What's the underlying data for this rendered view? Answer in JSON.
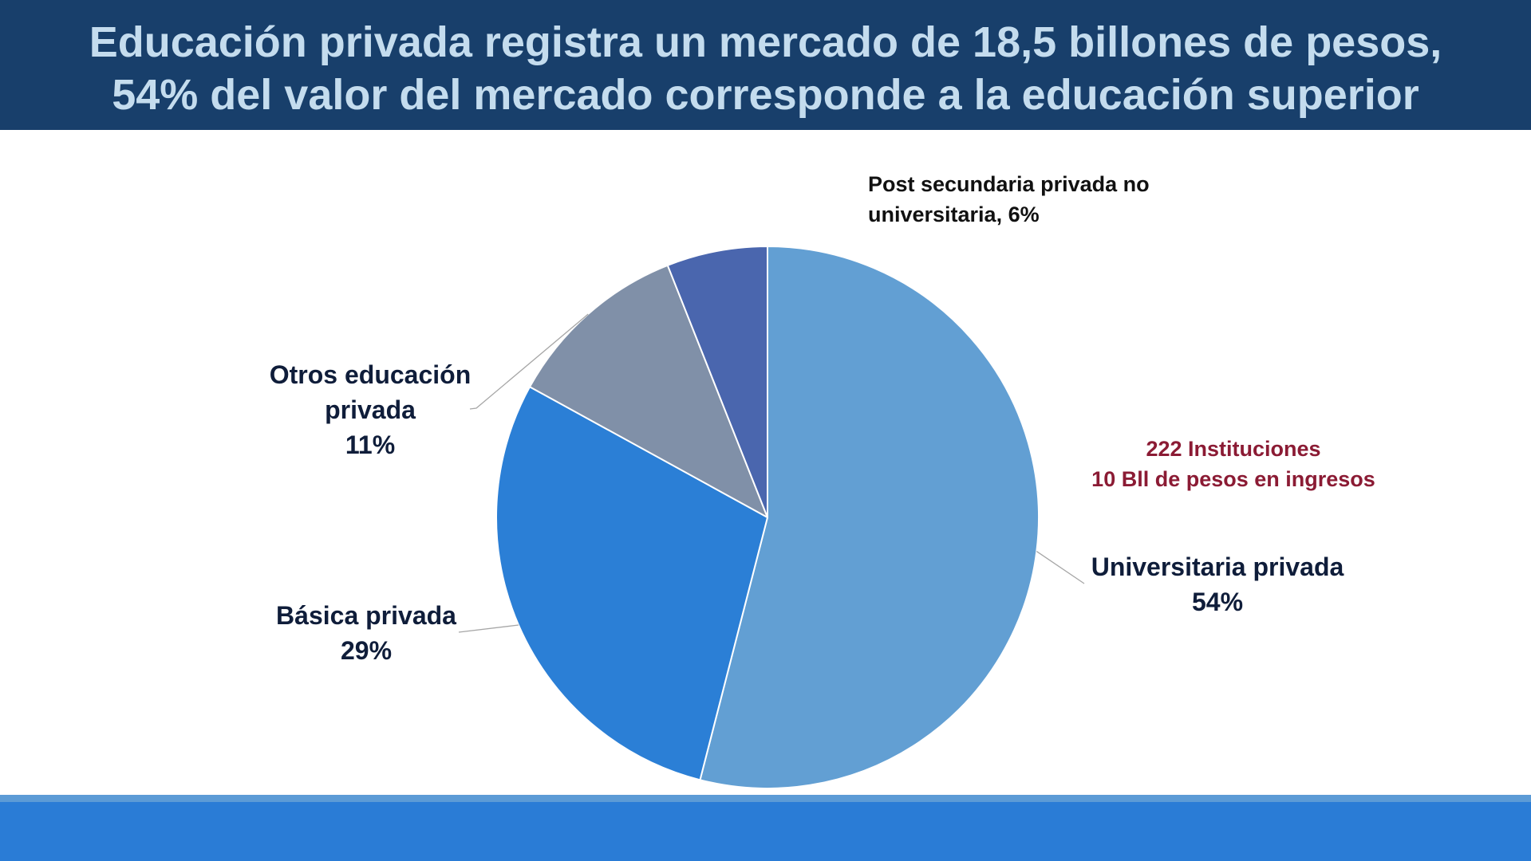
{
  "header": {
    "title_line1": "Educación privada registra un mercado de 18,5 billones de pesos,",
    "title_line2": "54% del valor del mercado corresponde a la educación superior"
  },
  "theme": {
    "header_bg": "#183f6b",
    "title_color": "#c4dcee",
    "label_color": "#0f1d3a",
    "footer_strip": "#5c9bd6",
    "footer_bar": "#2a7cd6"
  },
  "chart_data": {
    "type": "pie",
    "slices": [
      {
        "label": "Universitaria privada",
        "value": 54,
        "value_label": "54%",
        "color": "#629fd3"
      },
      {
        "label": "Básica privada",
        "value": 29,
        "value_label": "29%",
        "color": "#2b7fd6"
      },
      {
        "label": "Otros educación privada",
        "value": 11,
        "value_label": "11%",
        "color": "#8090a8"
      },
      {
        "label": "Post secundaria privada no universitaria",
        "value": 6,
        "value_label": "6%",
        "color": "#4a66ae"
      }
    ],
    "label_separator": ","
  },
  "annotation": {
    "line1": "222 Instituciones",
    "line2": "10 Bll de pesos en ingresos",
    "color": "#8b1b34"
  }
}
